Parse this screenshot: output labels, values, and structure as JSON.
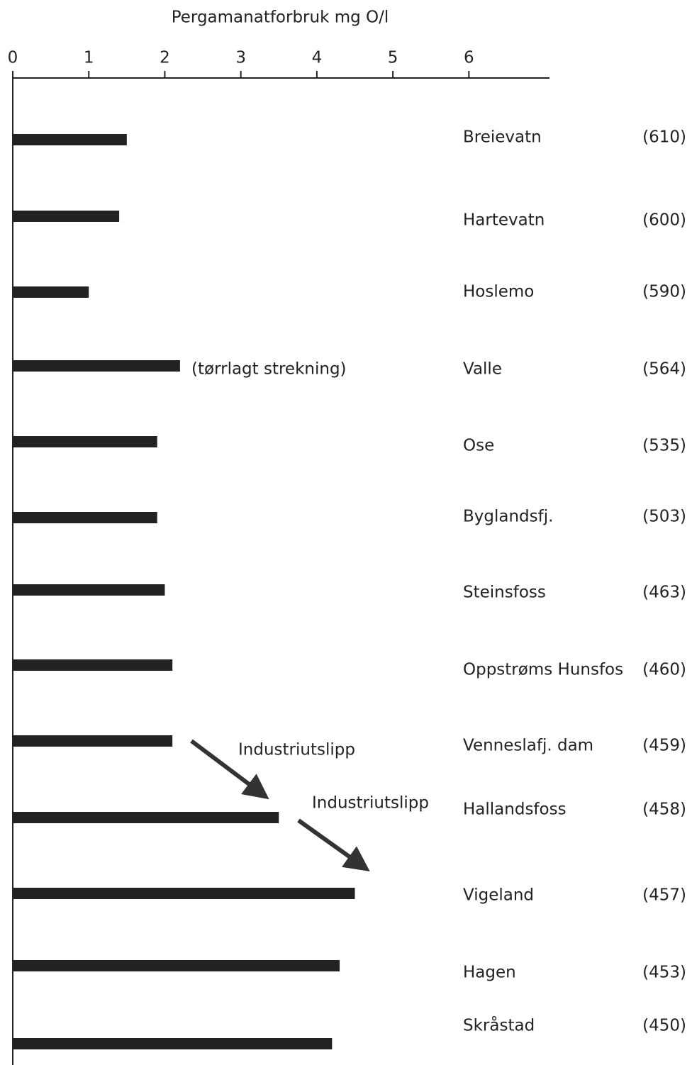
{
  "chart_data": {
    "type": "bar",
    "orientation": "horizontal",
    "title": "Pergamanatforbruk mg O/l",
    "categories": [
      "Breievatn",
      "Hartevatn",
      "Hoslemo",
      "Valle",
      "Ose",
      "Byglandsfj.",
      "Steinsfoss",
      "Oppstrøms Hunsfos",
      "Venneslafj. dam",
      "Hallandsfoss",
      "Vigeland",
      "Hagen",
      "Skråstad"
    ],
    "elevations": [
      "(610)",
      "(600)",
      "(590)",
      "(564)",
      "(535)",
      "(503)",
      "(463)",
      "(460)",
      "(459)",
      "(458)",
      "(457)",
      "(453)",
      "(450)"
    ],
    "values": [
      1.5,
      1.4,
      1.0,
      2.2,
      1.9,
      1.9,
      2.0,
      2.1,
      2.1,
      3.5,
      4.5,
      4.3,
      4.2
    ],
    "color": "#222222",
    "xlim": [
      0,
      7.06
    ],
    "xticks": [
      0,
      1,
      2,
      3,
      4,
      5,
      6
    ],
    "annotations": [
      "(tørrlagt strekning)",
      "Industriutslipp",
      "Industriutslipp"
    ]
  }
}
